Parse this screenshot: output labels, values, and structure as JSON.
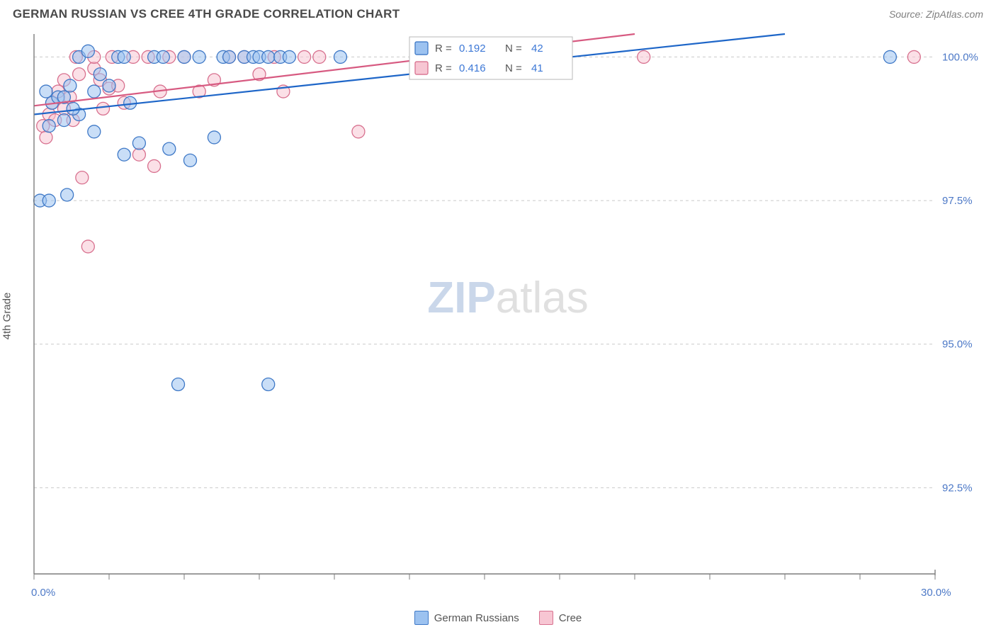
{
  "header": {
    "title": "GERMAN RUSSIAN VS CREE 4TH GRADE CORRELATION CHART",
    "source": "Source: ZipAtlas.com"
  },
  "ylabel": "4th Grade",
  "watermark": {
    "text_a": "ZIP",
    "text_b": "atlas",
    "color_a": "#9fb7d9",
    "color_b": "#c7c7c7",
    "fontsize": 62
  },
  "series": {
    "a": {
      "name": "German Russians",
      "fill": "#9cc2f0",
      "stroke": "#3f79c7",
      "line_stroke": "#1e66c8",
      "r_value": "0.192",
      "n_value": "42",
      "trend": {
        "x1": 0.0,
        "y1": 99.0,
        "x2": 25.0,
        "y2": 100.4
      },
      "points": [
        [
          0.2,
          97.5
        ],
        [
          0.5,
          97.5
        ],
        [
          1.1,
          97.6
        ],
        [
          0.5,
          98.8
        ],
        [
          0.6,
          99.2
        ],
        [
          0.8,
          99.3
        ],
        [
          1.0,
          99.3
        ],
        [
          1.2,
          99.5
        ],
        [
          1.5,
          99.0
        ],
        [
          1.5,
          100.0
        ],
        [
          1.8,
          100.1
        ],
        [
          2.0,
          98.7
        ],
        [
          2.2,
          99.7
        ],
        [
          2.5,
          99.5
        ],
        [
          2.8,
          100.0
        ],
        [
          3.0,
          100.0
        ],
        [
          3.2,
          99.2
        ],
        [
          3.5,
          98.5
        ],
        [
          3.0,
          98.3
        ],
        [
          4.0,
          100.0
        ],
        [
          4.3,
          100.0
        ],
        [
          4.5,
          98.4
        ],
        [
          5.0,
          100.0
        ],
        [
          5.2,
          98.2
        ],
        [
          5.5,
          100.0
        ],
        [
          6.0,
          98.6
        ],
        [
          6.3,
          100.0
        ],
        [
          6.5,
          100.0
        ],
        [
          7.0,
          100.0
        ],
        [
          7.3,
          100.0
        ],
        [
          7.5,
          100.0
        ],
        [
          7.8,
          100.0
        ],
        [
          8.2,
          100.0
        ],
        [
          8.5,
          100.0
        ],
        [
          10.2,
          100.0
        ],
        [
          4.8,
          94.3
        ],
        [
          7.8,
          94.3
        ],
        [
          28.5,
          100.0
        ],
        [
          1.0,
          98.9
        ],
        [
          1.3,
          99.1
        ],
        [
          0.4,
          99.4
        ],
        [
          2.0,
          99.4
        ]
      ]
    },
    "b": {
      "name": "Cree",
      "fill": "#f7c6d3",
      "stroke": "#d8718f",
      "line_stroke": "#d75a81",
      "r_value": "0.416",
      "n_value": "41",
      "trend": {
        "x1": 0.0,
        "y1": 99.15,
        "x2": 20.0,
        "y2": 100.4
      },
      "points": [
        [
          0.3,
          98.8
        ],
        [
          0.5,
          99.0
        ],
        [
          0.6,
          99.2
        ],
        [
          0.8,
          99.4
        ],
        [
          1.0,
          99.1
        ],
        [
          1.2,
          99.3
        ],
        [
          1.5,
          99.7
        ],
        [
          1.6,
          97.9
        ],
        [
          1.8,
          96.7
        ],
        [
          2.0,
          99.8
        ],
        [
          2.2,
          99.6
        ],
        [
          2.5,
          99.45
        ],
        [
          2.8,
          99.5
        ],
        [
          3.0,
          99.2
        ],
        [
          3.3,
          100.0
        ],
        [
          3.5,
          98.3
        ],
        [
          3.8,
          100.0
        ],
        [
          4.0,
          98.1
        ],
        [
          4.2,
          99.4
        ],
        [
          4.5,
          100.0
        ],
        [
          5.0,
          100.0
        ],
        [
          5.5,
          99.4
        ],
        [
          6.0,
          99.6
        ],
        [
          6.5,
          100.0
        ],
        [
          7.0,
          100.0
        ],
        [
          7.5,
          99.7
        ],
        [
          8.0,
          100.0
        ],
        [
          8.3,
          99.4
        ],
        [
          9.0,
          100.0
        ],
        [
          9.5,
          100.0
        ],
        [
          10.8,
          98.7
        ],
        [
          20.3,
          100.0
        ],
        [
          29.3,
          100.0
        ],
        [
          1.0,
          99.6
        ],
        [
          1.3,
          98.9
        ],
        [
          0.4,
          98.6
        ],
        [
          0.7,
          98.9
        ],
        [
          2.0,
          100.0
        ],
        [
          2.3,
          99.1
        ],
        [
          2.6,
          100.0
        ],
        [
          1.4,
          100.0
        ]
      ]
    }
  },
  "axes": {
    "xlim": [
      0,
      30
    ],
    "ylim": [
      91,
      100.4
    ],
    "y_ticks": [
      92.5,
      95.0,
      97.5,
      100.0
    ],
    "y_tick_labels": [
      "92.5%",
      "95.0%",
      "97.5%",
      "100.0%"
    ],
    "x_minor_ticks": [
      0,
      2.5,
      5,
      7.5,
      10,
      12.5,
      15,
      17.5,
      20,
      22.5,
      25,
      27.5,
      30
    ],
    "x_start_label": "0.0%",
    "x_end_label": "30.0%",
    "grid_color": "#c9c9c9",
    "axis_color": "#7d7d7d",
    "tick_label_color": "#4d79c7",
    "x_end_color": "#4d79c7",
    "x_start_color": "#4d79c7",
    "tick_fontsize": 15
  },
  "stat_box": {
    "border": "#b8b8b8",
    "bg": "#ffffff",
    "label_color": "#555555",
    "value_color": "#3d78d6",
    "r_label": "R =",
    "n_label": "N ="
  },
  "marker_radius": 9,
  "marker_opacity": 0.55,
  "line_width": 2.2
}
